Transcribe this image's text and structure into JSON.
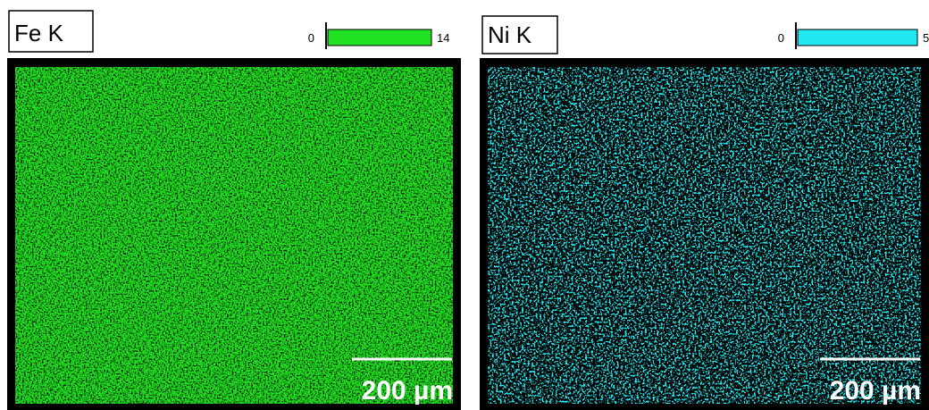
{
  "panels": [
    {
      "label": "Fe K",
      "scale_min": 0,
      "scale_max": 14,
      "color": "#22e022",
      "density": "dense",
      "scale_bar": "200 µm"
    },
    {
      "label": "Ni K",
      "scale_min": 0,
      "scale_max": 5,
      "color": "#22e8f0",
      "density": "sparse",
      "scale_bar": "200 µm"
    }
  ]
}
